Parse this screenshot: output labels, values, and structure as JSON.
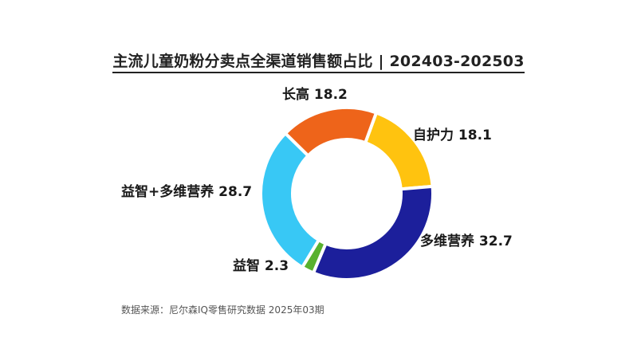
{
  "chart_data": {
    "type": "pie",
    "title": "主流儿童奶粉分卖点全渠道销售额占比 | 202403-202503",
    "source": "数据来源：尼尔森IQ零售研究数据 2025年03期",
    "slices": [
      {
        "label": "自护力",
        "value": 18.1,
        "display": "自护力 18.1",
        "color": "#FFC30F"
      },
      {
        "label": "多维营养",
        "value": 32.7,
        "display": "多维营养 32.7",
        "color": "#1C1F9B"
      },
      {
        "label": "益智",
        "value": 2.3,
        "display": "益智 2.3",
        "color": "#58B12E"
      },
      {
        "label": "益智+多维营养",
        "value": 28.7,
        "display": "益智+多维营养 28.7",
        "color": "#38C8F5"
      },
      {
        "label": "长高",
        "value": 18.2,
        "display": "长高 18.2",
        "color": "#EE641A"
      }
    ],
    "legend": "none",
    "donut": true
  }
}
